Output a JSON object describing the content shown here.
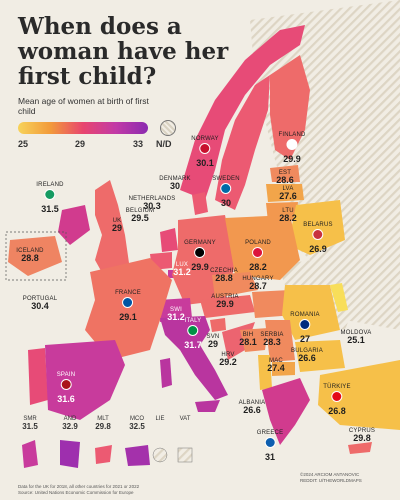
{
  "title": "When does a woman have her first child?",
  "subtitle": "Mean age of women at birth of first child",
  "legend": {
    "ticks": [
      "25",
      "29",
      "33"
    ],
    "nd": "N/D"
  },
  "colors": {
    "low": "#f7d35a",
    "mid": "#f29a3a",
    "high": "#e8456e",
    "top": "#8b2bb0",
    "nd": "#d9d2c2"
  },
  "countries": [
    {
      "id": "norway",
      "name": "NORWAY",
      "value": "30.1"
    },
    {
      "id": "sweden",
      "name": "SWEDEN",
      "value": "30"
    },
    {
      "id": "finland",
      "name": "FINLAND",
      "value": "29.9"
    },
    {
      "id": "est",
      "name": "EST",
      "value": "28.6"
    },
    {
      "id": "lva",
      "name": "LVA",
      "value": "27.6"
    },
    {
      "id": "ltu",
      "name": "LTU",
      "value": "28.2"
    },
    {
      "id": "belarus",
      "name": "BELARUS",
      "value": "26.9"
    },
    {
      "id": "denmark",
      "name": "DENMARK",
      "value": "30"
    },
    {
      "id": "ireland",
      "name": "IRELAND",
      "value": "31.5"
    },
    {
      "id": "uk",
      "name": "UK",
      "value": "29"
    },
    {
      "id": "netherlands",
      "name": "NETHERLANDS",
      "value": "30.3"
    },
    {
      "id": "belgium",
      "name": "BELGIUM",
      "value": "29.5"
    },
    {
      "id": "lux",
      "name": "LUX",
      "value": "31.2"
    },
    {
      "id": "germany",
      "name": "GERMANY",
      "value": "29.9"
    },
    {
      "id": "poland",
      "name": "POLAND",
      "value": "28.2"
    },
    {
      "id": "czechia",
      "name": "CZECHIA",
      "value": "28.8"
    },
    {
      "id": "austria",
      "name": "AUSTRIA",
      "value": "29.9"
    },
    {
      "id": "hungary",
      "name": "HUNGARY",
      "value": "28.7"
    },
    {
      "id": "romania",
      "name": "ROMANIA",
      "value": "27"
    },
    {
      "id": "moldova",
      "name": "MOLDOVA",
      "value": "25.1"
    },
    {
      "id": "france",
      "name": "FRANCE",
      "value": "29.1"
    },
    {
      "id": "portugal",
      "name": "PORTUGAL",
      "value": "30.4"
    },
    {
      "id": "spain",
      "name": "SPAIN",
      "value": "31.6"
    },
    {
      "id": "swi",
      "name": "SWI",
      "value": "31.2"
    },
    {
      "id": "italy",
      "name": "ITALY",
      "value": "31.7"
    },
    {
      "id": "svn",
      "name": "SVN",
      "value": "29"
    },
    {
      "id": "hrv",
      "name": "HRV",
      "value": "29.2"
    },
    {
      "id": "bih",
      "name": "BIH",
      "value": "28.1"
    },
    {
      "id": "serbia",
      "name": "SERBIA",
      "value": "28.3"
    },
    {
      "id": "bulgaria",
      "name": "BULGARIA",
      "value": "26.6"
    },
    {
      "id": "mac",
      "name": "MAC",
      "value": "27.4"
    },
    {
      "id": "albania",
      "name": "ALBANIA",
      "value": "26.6"
    },
    {
      "id": "greece",
      "name": "GREECE",
      "value": "31"
    },
    {
      "id": "turkiye",
      "name": "TÜRKIYE",
      "value": "26.8"
    },
    {
      "id": "cyprus",
      "name": "CYPRUS",
      "value": "29.8"
    },
    {
      "id": "iceland",
      "name": "ICELAND",
      "value": "28.8"
    }
  ],
  "insets": [
    {
      "name": "SMR",
      "value": "31.5"
    },
    {
      "name": "AND",
      "value": "32.9"
    },
    {
      "name": "MLT",
      "value": "29.8"
    },
    {
      "name": "MCO",
      "value": "32.5"
    },
    {
      "name": "LIE",
      "value": ""
    },
    {
      "name": "VAT",
      "value": ""
    }
  ],
  "footer": {
    "left1": "Data for the UK for 2018, all other countries for 2021 or 2022",
    "left2": "Source: United Nations Economic Commission for Europe",
    "right1": "©2024 ARCIOM ANTANOVIC",
    "right2": "REDDIT: U/THEWORLDMAPS"
  }
}
